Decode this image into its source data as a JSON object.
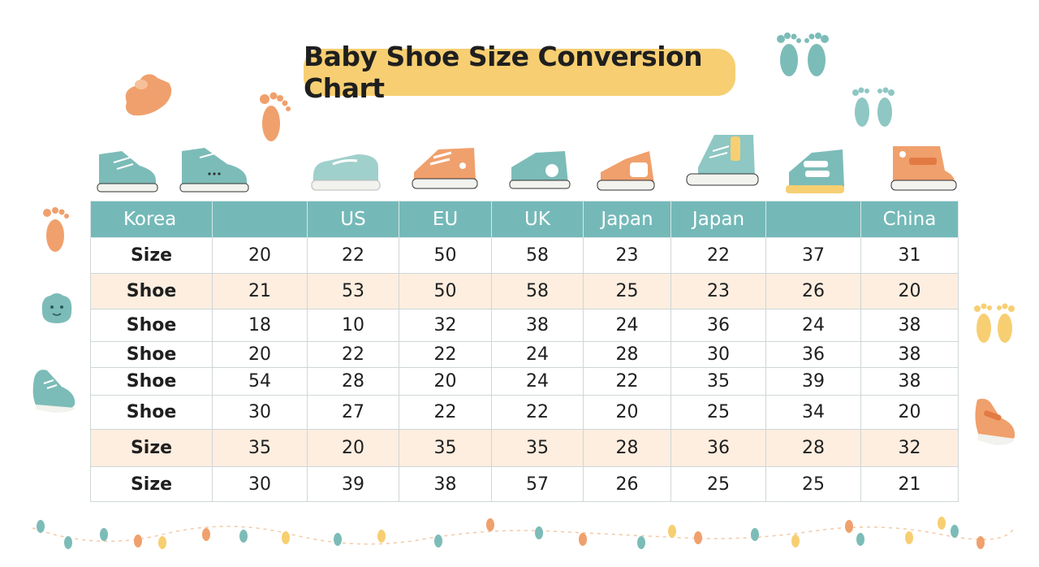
{
  "title": "Baby Shoe Size Conversion Chart",
  "colors": {
    "teal": "#74b9b8",
    "orange": "#f0a06c",
    "yellow": "#f7cf72",
    "peach_row": "#fdeee0"
  },
  "header": [
    "Korea",
    "",
    "US",
    "EU",
    "UK",
    "Japan",
    "Japan",
    "",
    "China"
  ],
  "rows": [
    {
      "label": "Size",
      "values": [
        "20",
        "22",
        "50",
        "58",
        "23",
        "22",
        "37",
        "31"
      ],
      "highlight": false
    },
    {
      "label": "Shoe",
      "values": [
        "21",
        "53",
        "50",
        "58",
        "25",
        "23",
        "26",
        "20"
      ],
      "highlight": true
    },
    {
      "label": "Shoe",
      "values": [
        "18",
        "10",
        "32",
        "38",
        "24",
        "36",
        "24",
        "38"
      ],
      "highlight": false
    },
    {
      "label": "Shoe",
      "values": [
        "20",
        "22",
        "22",
        "24",
        "28",
        "30",
        "36",
        "38"
      ],
      "highlight": false
    },
    {
      "label": "Shoe",
      "values": [
        "54",
        "28",
        "20",
        "24",
        "22",
        "35",
        "39",
        "38"
      ],
      "highlight": false
    },
    {
      "label": "Shoe",
      "values": [
        "30",
        "27",
        "22",
        "22",
        "20",
        "25",
        "34",
        "20"
      ],
      "highlight": false
    },
    {
      "label": "Size",
      "values": [
        "35",
        "20",
        "35",
        "35",
        "28",
        "36",
        "28",
        "32"
      ],
      "highlight": true
    },
    {
      "label": "Size",
      "values": [
        "30",
        "39",
        "38",
        "57",
        "26",
        "25",
        "25",
        "21"
      ],
      "highlight": false
    }
  ],
  "decorations": {
    "shoes": [
      "teal-sneaker-icon",
      "teal-sneaker-icon",
      "teal-slipon-icon",
      "orange-sneaker-icon",
      "teal-sandal-icon",
      "orange-sandal-icon",
      "teal-hightop-icon",
      "teal-velcro-shoe-icon",
      "orange-velcro-shoe-icon"
    ],
    "footprints": [
      "orange-footprint-icon",
      "teal-footprint-icon",
      "yellow-footprint-icon"
    ]
  }
}
